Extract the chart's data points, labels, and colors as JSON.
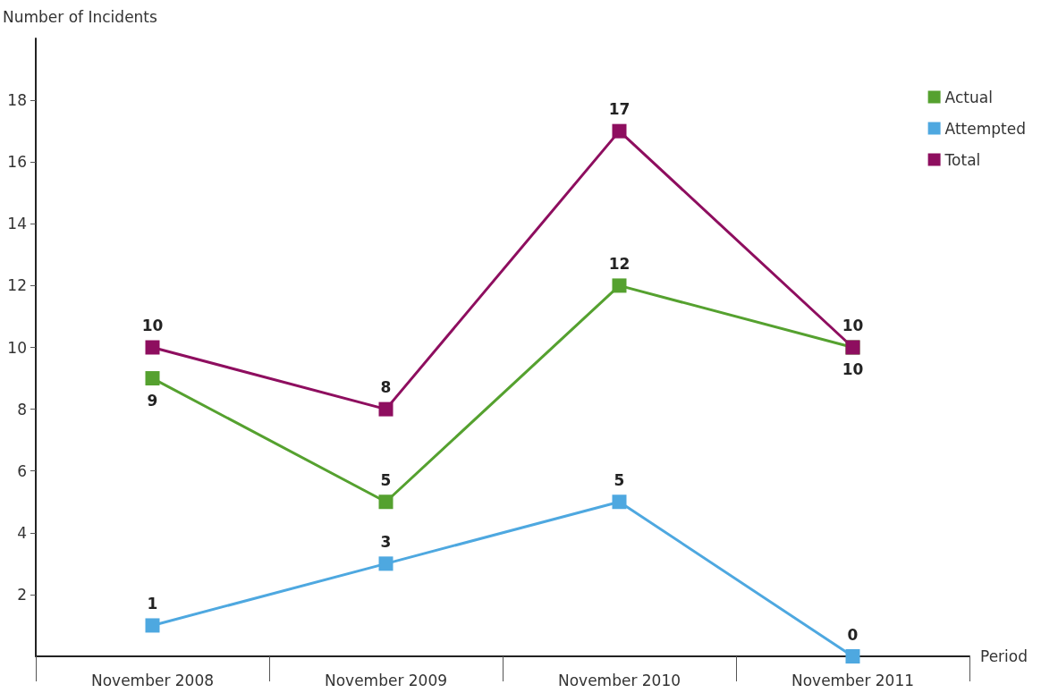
{
  "chart_data": {
    "type": "line",
    "xlabel": "Period",
    "ylabel": "Number of Incidents",
    "categories": [
      "November 2008",
      "November 2009",
      "November 2010",
      "November 2011"
    ],
    "series": [
      {
        "name": "Actual",
        "color": "#55a12f",
        "values": [
          9,
          5,
          12,
          10
        ]
      },
      {
        "name": "Attempted",
        "color": "#4ea8e0",
        "values": [
          1,
          3,
          5,
          0
        ]
      },
      {
        "name": "Total",
        "color": "#8e0e5f",
        "values": [
          10,
          8,
          17,
          10
        ]
      }
    ],
    "ylim": [
      0,
      20
    ],
    "yticks": [
      2,
      4,
      6,
      8,
      10,
      12,
      14,
      16,
      18
    ],
    "grid": false,
    "legend": "top right",
    "marker": "square",
    "line_style": "solid",
    "data_labels": true
  }
}
